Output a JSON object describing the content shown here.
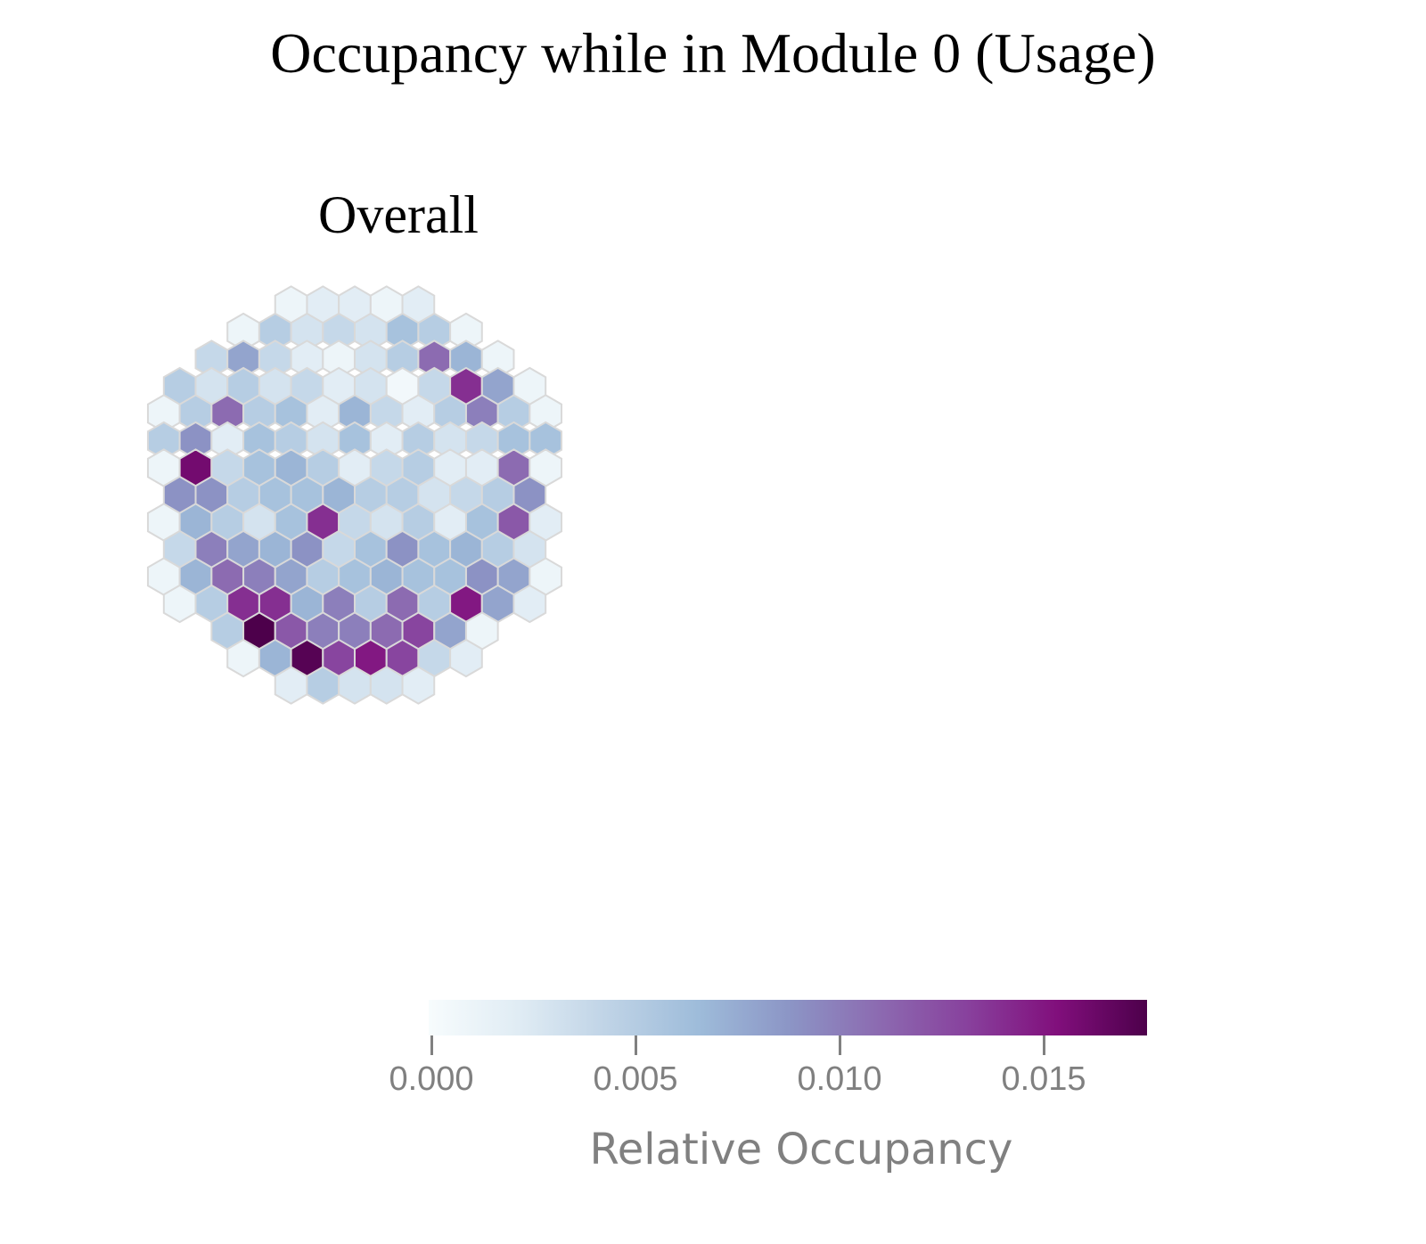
{
  "chart_data": {
    "type": "heatmap",
    "title": "Occupancy while in Module 0 (Usage)",
    "subtitle": "Overall",
    "colorbar": {
      "label": "Relative Occupancy",
      "range": [
        0,
        0.0176
      ],
      "ticks": [
        0.0,
        0.005,
        0.01,
        0.015
      ],
      "tick_labels": [
        "0.000",
        "0.005",
        "0.010",
        "0.015"
      ],
      "colorscale": [
        "#f7fcfd",
        "#e0ecf4",
        "#bfd3e6",
        "#9ebcda",
        "#8c96c6",
        "#8c6bb1",
        "#88419d",
        "#810f7c",
        "#4d004b"
      ]
    },
    "hex_rows": [
      [
        0.001,
        0.002,
        0.002,
        0.001,
        0.002
      ],
      [
        0.001,
        0.005,
        0.003,
        0.004,
        0.003,
        0.006,
        0.005,
        0.001
      ],
      [
        0.004,
        0.008,
        0.004,
        0.002,
        0.001,
        0.003,
        0.005,
        0.011,
        0.007,
        0.001
      ],
      [
        0.005,
        0.003,
        0.005,
        0.003,
        0.004,
        0.002,
        0.003,
        0.0005,
        0.004,
        0.014,
        0.008,
        0.001
      ],
      [
        0.001,
        0.005,
        0.011,
        0.005,
        0.006,
        0.002,
        0.007,
        0.004,
        0.002,
        0.005,
        0.01,
        0.005,
        0.001
      ],
      [
        0.005,
        0.009,
        0.002,
        0.006,
        0.005,
        0.003,
        0.006,
        0.002,
        0.005,
        0.003,
        0.004,
        0.006,
        0.006
      ],
      [
        0.001,
        0.016,
        0.004,
        0.006,
        0.007,
        0.005,
        0.002,
        0.004,
        0.005,
        0.002,
        0.002,
        0.011,
        0.001
      ],
      [
        0.009,
        0.009,
        0.005,
        0.006,
        0.006,
        0.007,
        0.005,
        0.005,
        0.003,
        0.004,
        0.005,
        0.009
      ],
      [
        0.001,
        0.007,
        0.005,
        0.003,
        0.006,
        0.014,
        0.004,
        0.003,
        0.005,
        0.002,
        0.006,
        0.012,
        0.002
      ],
      [
        0.004,
        0.01,
        0.008,
        0.007,
        0.009,
        0.004,
        0.006,
        0.009,
        0.006,
        0.007,
        0.005,
        0.003
      ],
      [
        0.001,
        0.007,
        0.011,
        0.01,
        0.008,
        0.005,
        0.006,
        0.007,
        0.006,
        0.006,
        0.009,
        0.008,
        0.001
      ],
      [
        0.001,
        0.005,
        0.014,
        0.014,
        0.007,
        0.01,
        0.005,
        0.011,
        0.005,
        0.015,
        0.008,
        0.002
      ],
      [
        0.005,
        0.0176,
        0.012,
        0.01,
        0.01,
        0.011,
        0.013,
        0.008,
        0.001
      ],
      [
        0.001,
        0.007,
        0.0172,
        0.013,
        0.015,
        0.013,
        0.004,
        0.002
      ],
      [
        0.002,
        0.005,
        0.003,
        0.003,
        0.002
      ]
    ]
  }
}
